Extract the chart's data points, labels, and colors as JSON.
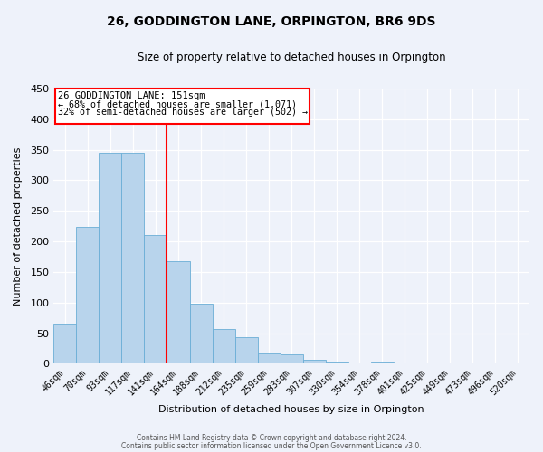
{
  "title": "26, GODDINGTON LANE, ORPINGTON, BR6 9DS",
  "subtitle": "Size of property relative to detached houses in Orpington",
  "xlabel": "Distribution of detached houses by size in Orpington",
  "ylabel": "Number of detached properties",
  "bar_labels": [
    "46sqm",
    "70sqm",
    "93sqm",
    "117sqm",
    "141sqm",
    "164sqm",
    "188sqm",
    "212sqm",
    "235sqm",
    "259sqm",
    "283sqm",
    "307sqm",
    "330sqm",
    "354sqm",
    "378sqm",
    "401sqm",
    "425sqm",
    "449sqm",
    "473sqm",
    "496sqm",
    "520sqm"
  ],
  "bar_values": [
    65,
    224,
    345,
    345,
    210,
    168,
    98,
    57,
    43,
    16,
    15,
    7,
    4,
    0,
    3,
    2,
    1,
    0,
    0,
    0,
    2
  ],
  "bar_color": "#b8d4ec",
  "bar_edgecolor": "#6aaed6",
  "reference_line_x": 5,
  "reference_line_label": "26 GODDINGTON LANE: 151sqm",
  "annotation_line1": "← 68% of detached houses are smaller (1,071)",
  "annotation_line2": "32% of semi-detached houses are larger (502) →",
  "ylim": [
    0,
    450
  ],
  "yticks": [
    0,
    50,
    100,
    150,
    200,
    250,
    300,
    350,
    400,
    450
  ],
  "footnote1": "Contains HM Land Registry data © Crown copyright and database right 2024.",
  "footnote2": "Contains public sector information licensed under the Open Government Licence v3.0.",
  "background_color": "#eef2fa",
  "grid_color": "#ffffff",
  "title_fontsize": 10,
  "subtitle_fontsize": 8.5,
  "tick_fontsize": 7,
  "ylabel_fontsize": 8,
  "xlabel_fontsize": 8
}
